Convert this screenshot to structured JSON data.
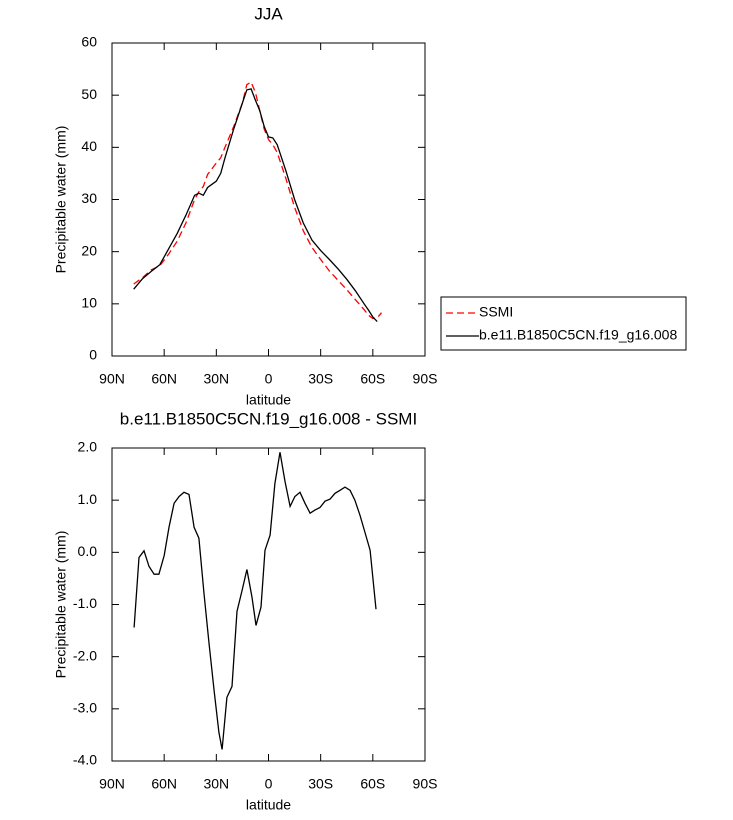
{
  "chart_data": [
    {
      "type": "line",
      "title": "JJA",
      "xlabel": "latitude",
      "ylabel": "Precipitable water (mm)",
      "x": [
        77.5,
        72.5,
        67.5,
        62.5,
        57.5,
        52.5,
        47.5,
        42.5,
        40,
        37.5,
        35,
        30,
        27.5,
        25,
        20,
        15,
        12.5,
        10,
        7.5,
        5,
        2.5,
        0,
        -2.5,
        -5,
        -10,
        -15,
        -20,
        -25,
        -30,
        -35,
        -40,
        -45,
        -50,
        -55,
        -57.5,
        -60,
        -62.5,
        -65
      ],
      "series": [
        {
          "name": "SSMI",
          "color": "#ff0000",
          "dashed": true,
          "values": [
            13.8,
            15.0,
            16.5,
            17.3,
            19.5,
            22,
            25.5,
            30,
            31.5,
            32.5,
            34.8,
            37,
            38,
            40,
            44,
            48.5,
            52,
            52.5,
            50.5,
            47,
            43.5,
            41.5,
            40.5,
            39,
            34,
            28.5,
            24,
            20.8,
            18.5,
            16.3,
            14.5,
            12.7,
            10.8,
            8.9,
            7.8,
            7.2,
            7.3,
            8.3
          ]
        },
        {
          "name": "b.e11.B1850C5CN.f19_g16.008",
          "color": "#000000",
          "dashed": false,
          "values": [
            12.8,
            14.8,
            16.2,
            17.5,
            20.5,
            23.5,
            27,
            30.8,
            31.2,
            30.8,
            32.3,
            33.5,
            35,
            38,
            43.5,
            48.5,
            51,
            51.2,
            49,
            47,
            44,
            42,
            41.8,
            40.5,
            35.5,
            30,
            25.5,
            22.2,
            20.2,
            18.5,
            16.7,
            14.7,
            12.5,
            10,
            8.8,
            7.5,
            6.6,
            null
          ]
        }
      ],
      "xlim": [
        90,
        -90
      ],
      "xticks": [
        {
          "value": 90,
          "label": "90N"
        },
        {
          "value": 60,
          "label": "60N"
        },
        {
          "value": 30,
          "label": "30N"
        },
        0,
        {
          "value": -30,
          "label": "30S"
        },
        {
          "value": -60,
          "label": "60S"
        },
        {
          "value": -90,
          "label": "90S"
        }
      ],
      "ylim": [
        0,
        60
      ],
      "yticks": [
        0,
        10,
        20,
        30,
        40,
        50,
        60
      ],
      "legend": "right"
    },
    {
      "type": "line",
      "title": "b.e11.B1850C5CN.f19_g16.008 - SSMI",
      "xlabel": "latitude",
      "ylabel": "Precipitable water (mm)",
      "x": [
        77.3,
        74.5,
        71.6,
        68.7,
        65.8,
        63,
        60,
        57.2,
        54.3,
        51.4,
        48.6,
        45.7,
        42.8,
        40,
        37.1,
        34.2,
        31.3,
        28.5,
        26.7,
        23.9,
        21,
        18.1,
        15.2,
        12.4,
        9.5,
        7.2,
        4.3,
        2,
        -0.9,
        -3.7,
        -6.6,
        -9.5,
        -12.4,
        -15.2,
        -18.1,
        -21,
        -23.9,
        -26.7,
        -29.6,
        -32.5,
        -35.4,
        -38.2,
        -41.1,
        -44,
        -46.9,
        -49.7,
        -52.6,
        -55.5,
        -58.4,
        -61.8
      ],
      "color": "#000000",
      "values": [
        -1.44,
        -0.1,
        0.03,
        -0.27,
        -0.42,
        -0.42,
        -0.06,
        0.48,
        0.94,
        1.07,
        1.15,
        1.11,
        0.48,
        0.27,
        -0.79,
        -1.74,
        -2.65,
        -3.45,
        -3.78,
        -2.78,
        -2.57,
        -1.13,
        -0.73,
        -0.33,
        -0.86,
        -1.4,
        -1.05,
        0.04,
        0.33,
        1.32,
        1.92,
        1.36,
        0.88,
        1.07,
        1.15,
        0.94,
        0.75,
        0.81,
        0.86,
        0.98,
        1.02,
        1.13,
        1.19,
        1.25,
        1.19,
        1.0,
        0.71,
        0.38,
        0.04,
        -1.09
      ],
      "xlim": [
        90,
        -90
      ],
      "xticks": [
        {
          "value": 90,
          "label": "90N"
        },
        {
          "value": 60,
          "label": "60N"
        },
        {
          "value": 30,
          "label": "30N"
        },
        0,
        {
          "value": -30,
          "label": "30S"
        },
        {
          "value": -60,
          "label": "60S"
        },
        {
          "value": -90,
          "label": "90S"
        }
      ],
      "ylim": [
        -4,
        2
      ],
      "yticks": [
        {
          "value": -4,
          "label": "-4.0"
        },
        {
          "value": -3,
          "label": "-3.0"
        },
        {
          "value": -2,
          "label": "-2.0"
        },
        {
          "value": -1,
          "label": "-1.0"
        },
        {
          "value": 0,
          "label": "0.0"
        },
        {
          "value": 1,
          "label": "1.0"
        },
        {
          "value": 2,
          "label": "2.0"
        }
      ]
    }
  ]
}
